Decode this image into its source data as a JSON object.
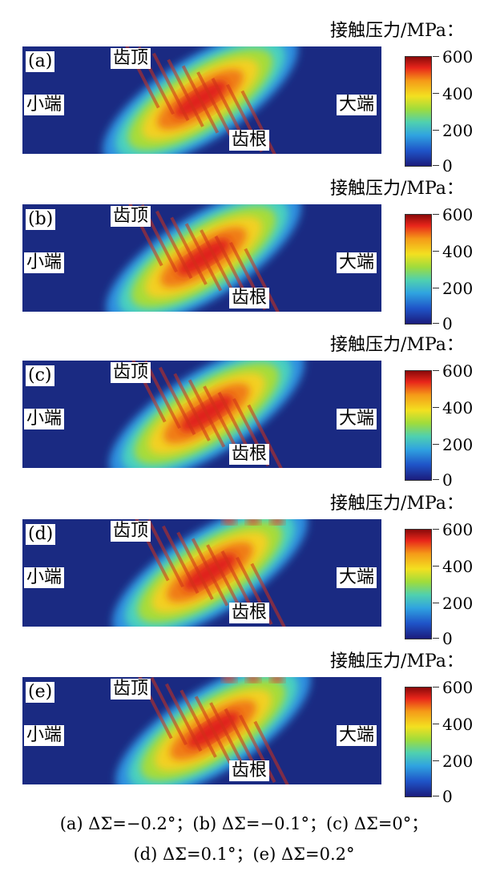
{
  "colorbar": {
    "title": "接触压力/MPa：",
    "ticks": [
      "600",
      "400",
      "200",
      "0"
    ]
  },
  "region_labels": {
    "tooth_top": "齿顶",
    "tooth_root": "齿根",
    "small_end": "小端",
    "large_end": "大端"
  },
  "panels": [
    {
      "id": "(a)"
    },
    {
      "id": "(b)"
    },
    {
      "id": "(c)"
    },
    {
      "id": "(d)"
    },
    {
      "id": "(e)"
    }
  ],
  "caption": {
    "line1": "(a) ΔΣ=−0.2°；(b) ΔΣ=−0.1°；(c) ΔΣ=0°；",
    "line2": "(d) ΔΣ=0.1°；(e) ΔΣ=0.2°"
  },
  "colors": {
    "background": "#1a2a82",
    "low": "#1b1c7c",
    "mid": "#9fdc3c",
    "high": "#e8251a"
  }
}
